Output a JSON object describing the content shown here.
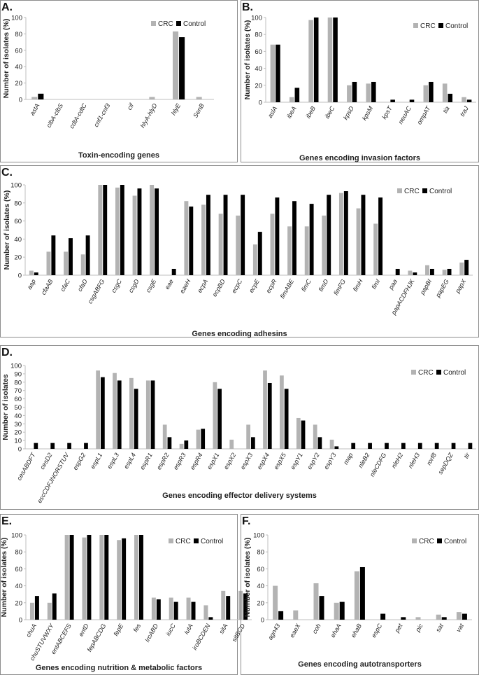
{
  "colors": {
    "crc": "#b3b3b3",
    "control": "#000000"
  },
  "chart_data": [
    {
      "panel": "A.",
      "type": "bar",
      "ylabel": "Number of isolates (%)",
      "xlabel": "Toxin-encoding genes",
      "ylim": [
        0,
        100
      ],
      "yticks": [
        0,
        20,
        40,
        60,
        80,
        100
      ],
      "legend": "top-right",
      "categories": [
        "astA",
        "clbA-clbS",
        "cdtA-cdtC",
        "cnf1-cnf3",
        "cif",
        "hlyA-hlyD",
        "hlyE",
        "SenB"
      ],
      "series": [
        {
          "name": "CRC",
          "values": [
            3,
            0,
            0,
            0,
            0,
            3,
            83,
            3
          ]
        },
        {
          "name": "Control",
          "values": [
            7,
            0,
            0,
            0,
            0,
            0,
            76,
            0
          ]
        }
      ]
    },
    {
      "panel": "B.",
      "type": "bar",
      "ylabel": "Number of isolates (%)",
      "xlabel": "Genes encoding invasion factors",
      "ylim": [
        0,
        100
      ],
      "yticks": [
        0,
        20,
        40,
        60,
        80,
        100
      ],
      "legend": "top-right",
      "categories": [
        "aslA",
        "ibeA",
        "ibeB",
        "ibeC",
        "kpsD",
        "kpsM",
        "kpsT",
        "neuAC",
        "ompAT",
        "tia",
        "traJ"
      ],
      "series": [
        {
          "name": "CRC",
          "values": [
            68,
            6,
            97,
            100,
            20,
            22,
            0,
            0,
            20,
            22,
            6
          ]
        },
        {
          "name": "Control",
          "values": [
            68,
            17,
            100,
            100,
            24,
            24,
            3,
            3,
            24,
            10,
            3
          ]
        }
      ]
    },
    {
      "panel": "C.",
      "type": "bar",
      "ylabel": "Number of isolates (%)",
      "xlabel": "Genes encoding adhesins",
      "ylim": [
        0,
        100
      ],
      "yticks": [
        0,
        20,
        40,
        60,
        80,
        100
      ],
      "legend": "top-right",
      "categories": [
        "aap",
        "cfaAB",
        "cfaC",
        "cfaD",
        "csgABFG",
        "csgC",
        "csgD",
        "csgE",
        "eae",
        "eaeH",
        "ecpA",
        "ecpBD",
        "ecpC",
        "ecpE",
        "ecpR",
        "fimABE",
        "fimC",
        "fimD",
        "fimFG",
        "fimH",
        "fimI",
        "paa",
        "papACDFHJK",
        "papBI",
        "papEG",
        "papX"
      ],
      "series": [
        {
          "name": "CRC",
          "values": [
            5,
            26,
            26,
            23,
            100,
            97,
            88,
            100,
            0,
            82,
            78,
            68,
            66,
            34,
            68,
            54,
            54,
            66,
            91,
            74,
            57,
            0,
            5,
            11,
            6,
            14
          ]
        },
        {
          "name": "Control",
          "values": [
            3,
            44,
            41,
            44,
            100,
            100,
            96,
            96,
            7,
            76,
            89,
            89,
            89,
            48,
            86,
            82,
            79,
            89,
            93,
            89,
            86,
            7,
            3,
            7,
            7,
            17
          ]
        }
      ]
    },
    {
      "panel": "D.",
      "type": "bar",
      "ylabel": "Number of isolates",
      "xlabel": "Genes encoding effector delivery systems",
      "ylim": [
        0,
        100
      ],
      "yticks": [
        0,
        10,
        20,
        30,
        40,
        50,
        60,
        70,
        80,
        90,
        100
      ],
      "legend": "top-right",
      "categories": [
        "cesABDFT",
        "cesD2",
        "escCDFJNORSTUV",
        "espG2",
        "espL1",
        "espL3",
        "espL4",
        "espR1",
        "espR2",
        "espR3",
        "espR4",
        "espX1",
        "espX2",
        "espX3",
        "espX4",
        "espX5",
        "espY1",
        "espY2",
        "espY3",
        "map",
        "nleB2",
        "nleCDFG",
        "nleH2",
        "nleH3",
        "rorf8",
        "sepDQZ",
        "tir"
      ],
      "series": [
        {
          "name": "CRC",
          "values": [
            0,
            0,
            0,
            0,
            94,
            91,
            85,
            82,
            29,
            6,
            23,
            80,
            11,
            29,
            94,
            88,
            37,
            29,
            11,
            0,
            0,
            0,
            0,
            0,
            0,
            0,
            0
          ]
        },
        {
          "name": "Control",
          "values": [
            7,
            7,
            7,
            7,
            86,
            82,
            72,
            82,
            14,
            10,
            24,
            72,
            0,
            14,
            79,
            72,
            34,
            14,
            3,
            7,
            7,
            7,
            7,
            7,
            7,
            7,
            7
          ]
        }
      ]
    },
    {
      "panel": "E.",
      "type": "bar",
      "ylabel": "Number of isolates (%)",
      "xlabel": "Genes encoding nutrition & metabolic factors",
      "ylim": [
        0,
        100
      ],
      "yticks": [
        0,
        20,
        40,
        60,
        80,
        100
      ],
      "legend": "top-right",
      "categories": [
        "chuA",
        "chuSTUVWXY",
        "entABCEFS",
        "entD",
        "fepABCDG",
        "fepE",
        "fes",
        "IrcABD",
        "iucC",
        "iutA",
        "iroBCDEN",
        "sitA",
        "sitBCD"
      ],
      "series": [
        {
          "name": "CRC",
          "values": [
            20,
            20,
            100,
            97,
            100,
            94,
            100,
            26,
            26,
            26,
            17,
            34,
            34
          ]
        },
        {
          "name": "Control",
          "values": [
            28,
            31,
            100,
            100,
            100,
            96,
            100,
            24,
            21,
            21,
            3,
            28,
            31
          ]
        }
      ]
    },
    {
      "panel": "F.",
      "type": "bar",
      "ylabel": "Number of isolates (%)",
      "xlabel": "Genes encoding autotransporters",
      "ylim": [
        0,
        100
      ],
      "yticks": [
        0,
        20,
        40,
        60,
        80,
        100
      ],
      "legend": "top-right",
      "categories": [
        "agn43",
        "eaeX",
        "coh",
        "ehaA",
        "ehaB",
        "espC",
        "pet",
        "pic",
        "sat",
        "vat"
      ],
      "series": [
        {
          "name": "CRC",
          "values": [
            40,
            11,
            43,
            20,
            57,
            0,
            0,
            3,
            6,
            9
          ]
        },
        {
          "name": "Control",
          "values": [
            10,
            0,
            28,
            21,
            62,
            7,
            3,
            0,
            3,
            7
          ]
        }
      ]
    }
  ]
}
